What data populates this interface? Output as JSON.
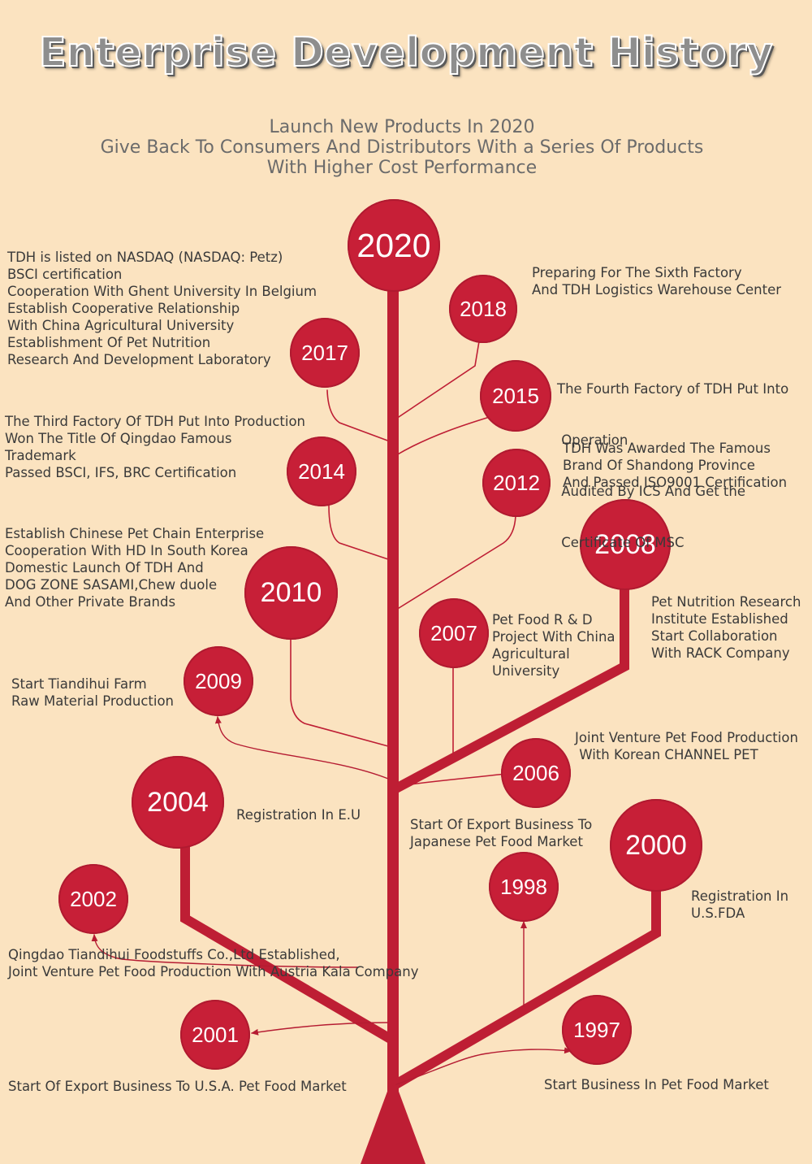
{
  "title": "Enterprise Development History",
  "subtitle": [
    "Launch New Products In 2020",
    "Give Back To Consumers And Distributors With a Series Of Products",
    "With Higher Cost Performance"
  ],
  "colors": {
    "background": "#fbe3c0",
    "trunk": "#be1e34",
    "circle": "#c71f37",
    "text": "#3a3a3a"
  },
  "milestones": {
    "y2020": {
      "year": "2020",
      "lines": [
        "TDH is listed on NASDAQ (NASDAQ: Petz)",
        "BSCI certification",
        "Cooperation With Ghent University In Belgium",
        "Establish Cooperative Relationship",
        "With China Agricultural University",
        "Establishment Of Pet Nutrition",
        "Research And Development Laboratory"
      ]
    },
    "y2018": {
      "year": "2018",
      "lines": [
        "Preparing For The Sixth Factory",
        "And TDH Logistics Warehouse Center"
      ]
    },
    "y2017": {
      "year": "2017",
      "lines": []
    },
    "y2015": {
      "year": "2015",
      "lines": [
        "The Fourth Factory of TDH Put Into",
        " Operation",
        " Audited By ICS And Get the",
        " Certificate Of MSC"
      ]
    },
    "y2014": {
      "year": "2014",
      "lines": [
        "The Third Factory Of TDH Put Into Production",
        "Won The Title Of Qingdao Famous",
        "Trademark",
        "Passed BSCI, IFS, BRC Certification"
      ]
    },
    "y2012": {
      "year": "2012",
      "lines": [
        "TDH Was Awarded The Famous",
        "Brand Of Shandong Province",
        "And Passed ISO9001 Certification"
      ]
    },
    "y2010": {
      "year": "2010",
      "lines": [
        "Establish Chinese Pet Chain Enterprise",
        "Cooperation With HD In South Korea",
        "Domestic Launch Of TDH And",
        "DOG ZONE SASAMI,Chew duole",
        "And Other Private Brands"
      ]
    },
    "y2008": {
      "year": "2008",
      "lines": [
        "Pet Nutrition Research",
        "Institute Established",
        "Start Collaboration",
        "With RACK Company"
      ]
    },
    "y2007": {
      "year": "2007",
      "lines": [
        "Pet Food R & D",
        "Project With China",
        "Agricultural",
        "University"
      ]
    },
    "y2009": {
      "year": "2009",
      "lines": [
        "Start Tiandihui Farm",
        "Raw Material Production"
      ]
    },
    "y2006": {
      "year": "2006",
      "lines": [
        "Joint Venture Pet Food Production",
        " With Korean CHANNEL PET"
      ]
    },
    "y2004": {
      "year": "2004",
      "lines": [
        "Registration In E.U"
      ]
    },
    "y2000": {
      "year": "2000",
      "lines": [
        "Registration In",
        "U.S.FDA"
      ]
    },
    "y1998": {
      "year": "1998",
      "lines": [
        "Start Of Export Business To",
        "Japanese Pet Food Market"
      ]
    },
    "y2002": {
      "year": "2002",
      "lines": [
        "Qingdao Tiandihui Foodstuffs Co.,Ltd Established,",
        "Joint Venture Pet Food Production With Austria Kala Company"
      ]
    },
    "y2001": {
      "year": "2001",
      "lines": [
        "Start Of Export Business To U.S.A. Pet Food Market"
      ]
    },
    "y1997": {
      "year": "1997",
      "lines": [
        "Start Business In Pet Food Market"
      ]
    }
  }
}
